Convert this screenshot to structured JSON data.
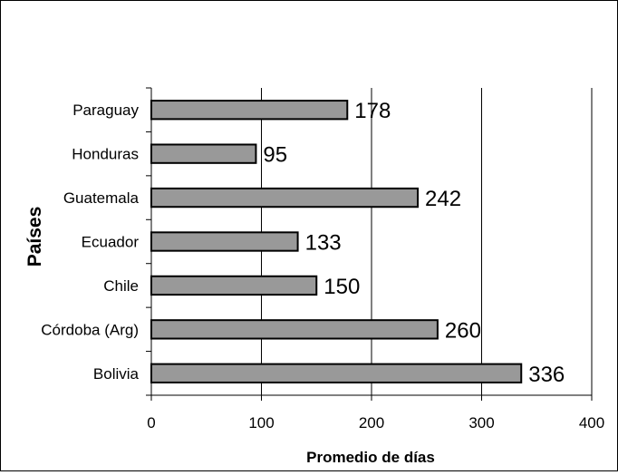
{
  "chart_data": {
    "type": "bar",
    "orientation": "horizontal",
    "categories": [
      "Paraguay",
      "Honduras",
      "Guatemala",
      "Ecuador",
      "Chile",
      "Córdoba (Arg)",
      "Bolivia"
    ],
    "values": [
      178,
      95,
      242,
      133,
      150,
      260,
      336
    ],
    "data_labels": [
      "178",
      "95",
      "242",
      "133",
      "150",
      "260",
      "336"
    ],
    "title": "",
    "xlabel": "Promedio de días",
    "ylabel": "Países",
    "xlim": [
      0,
      400
    ],
    "xticks": [
      0,
      100,
      200,
      300,
      400
    ],
    "xtick_labels": [
      "0",
      "100",
      "200",
      "300",
      "400"
    ],
    "grid": "vertical",
    "legend": "none",
    "colors": {
      "bar_fill": "#999999",
      "bar_edge": "#000000",
      "grid": "#000000"
    }
  }
}
